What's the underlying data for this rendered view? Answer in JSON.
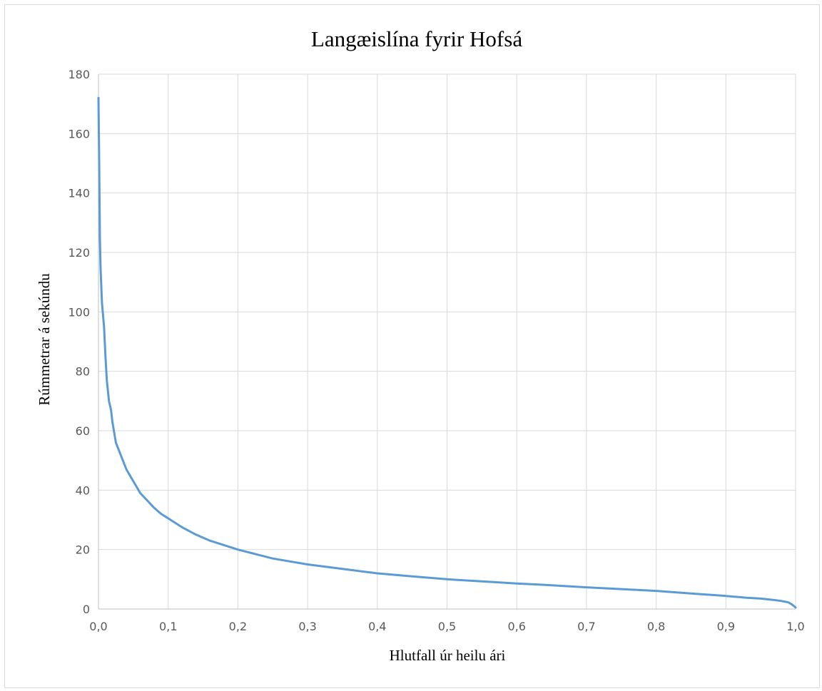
{
  "chart_data": {
    "type": "line",
    "title": "Langæislína fyrir Hofsá",
    "xlabel": "Hlutfall úr heilu ári",
    "ylabel": "Rúmmetrar á sekúndu",
    "xlim": [
      0,
      1
    ],
    "ylim": [
      0,
      180
    ],
    "x_ticks": [
      "0,0",
      "0,1",
      "0,2",
      "0,3",
      "0,4",
      "0,5",
      "0,6",
      "0,7",
      "0,8",
      "0,9",
      "1,0"
    ],
    "y_ticks": [
      "0",
      "20",
      "40",
      "60",
      "80",
      "100",
      "120",
      "140",
      "160",
      "180"
    ],
    "grid": true,
    "legend": "none",
    "series_color": "#5B9BD5",
    "series": [
      {
        "x": [
          0.0,
          0.001,
          0.002,
          0.003,
          0.005,
          0.008,
          0.01,
          0.012,
          0.015,
          0.018,
          0.02,
          0.025,
          0.03,
          0.035,
          0.04,
          0.05,
          0.06,
          0.07,
          0.08,
          0.09,
          0.1,
          0.12,
          0.14,
          0.16,
          0.18,
          0.2,
          0.25,
          0.3,
          0.35,
          0.4,
          0.45,
          0.5,
          0.55,
          0.6,
          0.65,
          0.7,
          0.75,
          0.8,
          0.85,
          0.9,
          0.93,
          0.95,
          0.97,
          0.98,
          0.99,
          0.995,
          1.0
        ],
        "y": [
          172,
          150,
          125,
          115,
          103,
          95,
          85,
          77,
          70,
          67,
          63,
          56,
          53,
          50,
          47,
          43,
          39,
          36.5,
          34,
          32,
          30.5,
          27.5,
          25,
          23,
          21.5,
          20,
          17,
          15,
          13.5,
          12,
          11,
          10,
          9.3,
          8.6,
          8,
          7.3,
          6.7,
          6.1,
          5.2,
          4.4,
          3.8,
          3.5,
          3,
          2.7,
          2.2,
          1.5,
          0.5
        ]
      }
    ]
  }
}
